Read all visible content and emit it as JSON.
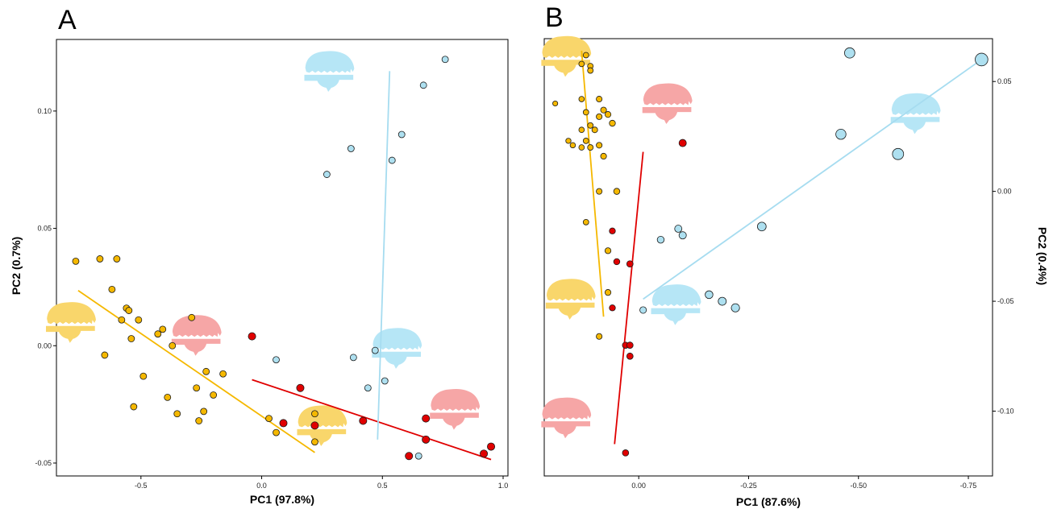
{
  "chart_data": [
    {
      "panel_label": "A",
      "type": "scatter",
      "xlabel": "PC1 (97.8%)",
      "ylabel": "PC2 (0.7%)",
      "xlim": [
        -0.85,
        1.02
      ],
      "ylim": [
        -0.0555,
        0.1305
      ],
      "x_reversed": false,
      "y_axis_side": "left",
      "xticks": [
        -0.5,
        0.0,
        0.5,
        1.0
      ],
      "xtick_labels": [
        "-0.5",
        "0.0",
        "0.5",
        "1.0"
      ],
      "yticks": [
        -0.05,
        0.0,
        0.05,
        0.1
      ],
      "ytick_labels": [
        "-0.05",
        "0.00",
        "0.05",
        "0.10"
      ],
      "grid": false,
      "series": [
        {
          "color": "#f5b800",
          "points": [
            [
              -0.77,
              0.036
            ],
            [
              -0.67,
              0.037
            ],
            [
              -0.6,
              0.037
            ],
            [
              -0.62,
              0.024
            ],
            [
              -0.58,
              0.011
            ],
            [
              -0.56,
              0.016
            ],
            [
              -0.55,
              0.015
            ],
            [
              -0.51,
              0.011
            ],
            [
              -0.54,
              0.003
            ],
            [
              -0.65,
              -0.004
            ],
            [
              -0.49,
              -0.013
            ],
            [
              -0.53,
              -0.026
            ],
            [
              -0.43,
              0.005
            ],
            [
              -0.41,
              0.007
            ],
            [
              -0.37,
              0.0
            ],
            [
              -0.29,
              0.012
            ],
            [
              -0.39,
              -0.022
            ],
            [
              -0.35,
              -0.029
            ],
            [
              -0.27,
              -0.018
            ],
            [
              -0.26,
              -0.032
            ],
            [
              -0.23,
              -0.011
            ],
            [
              -0.24,
              -0.028
            ],
            [
              -0.2,
              -0.021
            ],
            [
              -0.16,
              -0.012
            ],
            [
              0.03,
              -0.031
            ],
            [
              0.06,
              -0.037
            ],
            [
              0.22,
              -0.029
            ],
            [
              0.22,
              -0.041
            ]
          ],
          "trend": [
            [
              -0.76,
              0.0235
            ],
            [
              0.22,
              -0.0455
            ]
          ]
        },
        {
          "color": "#e00000",
          "points": [
            [
              -0.04,
              0.004
            ],
            [
              0.09,
              -0.033
            ],
            [
              0.16,
              -0.018
            ],
            [
              0.22,
              -0.034
            ],
            [
              0.42,
              -0.032
            ],
            [
              0.61,
              -0.047
            ],
            [
              0.68,
              -0.031
            ],
            [
              0.68,
              -0.04
            ],
            [
              0.92,
              -0.046
            ],
            [
              0.95,
              -0.043
            ]
          ],
          "trend": [
            [
              -0.04,
              -0.0145
            ],
            [
              0.95,
              -0.0485
            ]
          ]
        },
        {
          "color": "#aee0f0",
          "points": [
            [
              0.27,
              0.073
            ],
            [
              0.37,
              0.084
            ],
            [
              0.54,
              0.079
            ],
            [
              0.58,
              0.09
            ],
            [
              0.67,
              0.111
            ],
            [
              0.76,
              0.122
            ],
            [
              0.06,
              -0.006
            ],
            [
              0.38,
              -0.005
            ],
            [
              0.47,
              -0.002
            ],
            [
              0.44,
              -0.018
            ],
            [
              0.51,
              -0.015
            ],
            [
              0.65,
              -0.047
            ]
          ],
          "trend": [
            [
              0.48,
              -0.04
            ],
            [
              0.53,
              0.117
            ]
          ]
        }
      ],
      "silhouettes": [
        {
          "color": "#f9d66b",
          "x": -0.79,
          "y": 0.0095
        },
        {
          "color": "#f6a6a6",
          "x": -0.27,
          "y": 0.004
        },
        {
          "color": "#b6e6f6",
          "x": 0.28,
          "y": 0.1165
        },
        {
          "color": "#b6e6f6",
          "x": 0.56,
          "y": -0.0015
        },
        {
          "color": "#f9d66b",
          "x": 0.25,
          "y": -0.0345
        },
        {
          "color": "#f6a6a6",
          "x": 0.8,
          "y": -0.0275
        }
      ]
    },
    {
      "panel_label": "B",
      "type": "scatter",
      "xlabel": "PC1 (87.6%)",
      "ylabel": "PC2 (0.4%)",
      "xlim": [
        0.215,
        -0.805
      ],
      "ylim": [
        -0.1295,
        0.0695
      ],
      "x_reversed": true,
      "y_axis_side": "right",
      "xticks": [
        0.0,
        -0.25,
        -0.5,
        -0.75
      ],
      "xtick_labels": [
        "0.00",
        "-0.25",
        "-0.50",
        "-0.75"
      ],
      "yticks": [
        0.05,
        0.0,
        -0.05,
        -0.1
      ],
      "ytick_labels": [
        "0.05",
        "0.00",
        "-0.05",
        "-0.10"
      ],
      "grid": false,
      "series": [
        {
          "color": "#f5b800",
          "points": [
            [
              0.19,
              0.04
            ],
            [
              0.12,
              0.062
            ],
            [
              0.13,
              0.058
            ],
            [
              0.11,
              0.057
            ],
            [
              0.11,
              0.055
            ],
            [
              0.13,
              0.042
            ],
            [
              0.09,
              0.042
            ],
            [
              0.12,
              0.036
            ],
            [
              0.09,
              0.034
            ],
            [
              0.08,
              0.037
            ],
            [
              0.07,
              0.035
            ],
            [
              0.06,
              0.031
            ],
            [
              0.11,
              0.03
            ],
            [
              0.13,
              0.028
            ],
            [
              0.1,
              0.028
            ],
            [
              0.16,
              0.023
            ],
            [
              0.15,
              0.021
            ],
            [
              0.12,
              0.023
            ],
            [
              0.09,
              0.021
            ],
            [
              0.11,
              0.02
            ],
            [
              0.08,
              0.016
            ],
            [
              0.13,
              0.02
            ],
            [
              0.09,
              0.0
            ],
            [
              0.05,
              0.0
            ],
            [
              0.12,
              -0.014
            ],
            [
              0.07,
              -0.027
            ],
            [
              0.07,
              -0.046
            ],
            [
              0.09,
              -0.066
            ]
          ],
          "trend": [
            [
              0.13,
              0.064
            ],
            [
              0.08,
              -0.057
            ]
          ]
        },
        {
          "color": "#e00000",
          "points": [
            [
              -0.1,
              0.022
            ],
            [
              0.06,
              -0.018
            ],
            [
              0.05,
              -0.032
            ],
            [
              0.02,
              -0.033
            ],
            [
              0.06,
              -0.053
            ],
            [
              0.03,
              -0.07
            ],
            [
              0.02,
              -0.07
            ],
            [
              0.02,
              -0.075
            ],
            [
              0.03,
              -0.119
            ]
          ],
          "trend": [
            [
              -0.01,
              0.018
            ],
            [
              0.055,
              -0.115
            ]
          ]
        },
        {
          "color": "#aee0f0",
          "points": [
            [
              -0.01,
              -0.054
            ],
            [
              -0.05,
              -0.022
            ],
            [
              -0.09,
              -0.017
            ],
            [
              -0.1,
              -0.02
            ],
            [
              -0.28,
              -0.016
            ],
            [
              -0.16,
              -0.047
            ],
            [
              -0.19,
              -0.05
            ],
            [
              -0.22,
              -0.053
            ],
            [
              -0.46,
              0.026
            ],
            [
              -0.48,
              0.063
            ],
            [
              -0.59,
              0.017
            ],
            [
              -0.78,
              0.06
            ]
          ],
          "trend": [
            [
              -0.01,
              -0.049
            ],
            [
              -0.78,
              0.06
            ]
          ]
        }
      ],
      "silhouettes": [
        {
          "color": "#f9d66b",
          "x": 0.165,
          "y": 0.061
        },
        {
          "color": "#f6a6a6",
          "x": -0.065,
          "y": 0.0395
        },
        {
          "color": "#b6e6f6",
          "x": -0.63,
          "y": 0.035
        },
        {
          "color": "#f9d66b",
          "x": 0.155,
          "y": -0.0495
        },
        {
          "color": "#b6e6f6",
          "x": -0.085,
          "y": -0.052
        },
        {
          "color": "#f6a6a6",
          "x": 0.165,
          "y": -0.1035
        }
      ]
    }
  ]
}
